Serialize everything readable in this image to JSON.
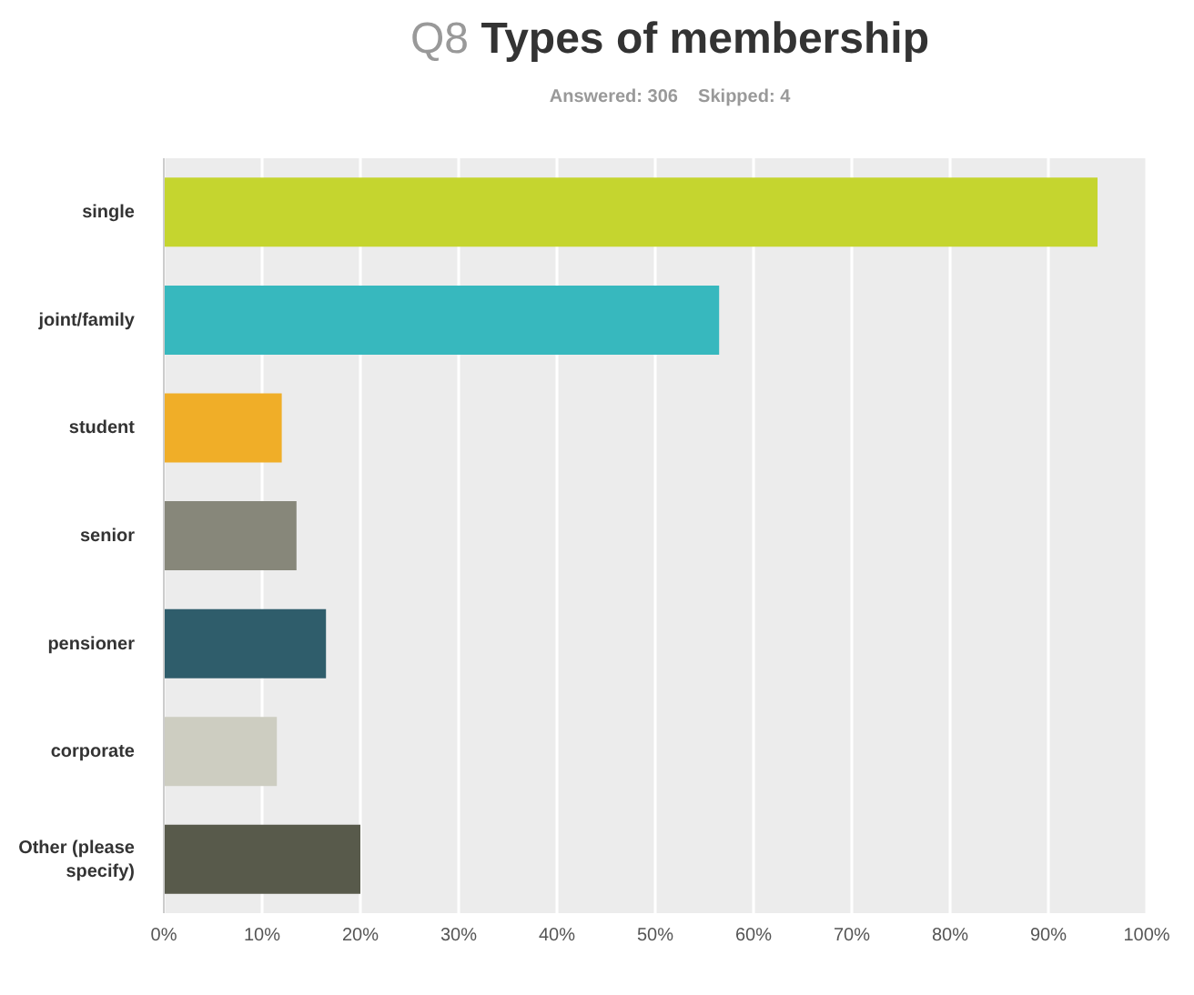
{
  "chart_data": {
    "type": "bar",
    "orientation": "horizontal",
    "title": "Q8 Types of membership",
    "subtitle": "Answered: 306    Skipped: 4",
    "categories": [
      "single",
      "joint/family",
      "student",
      "senior",
      "pensioner",
      "corporate",
      "Other (please specify)"
    ],
    "values": [
      95,
      56.5,
      12,
      13.5,
      16.5,
      11.5,
      20
    ],
    "colors": [
      "#c5d52f",
      "#37b8be",
      "#f0ae28",
      "#87877a",
      "#2f5d6b",
      "#cdcdc1",
      "#585a4b"
    ],
    "xlim": [
      0,
      100
    ],
    "xticks": [
      {
        "value": 0,
        "label": "0%"
      },
      {
        "value": 10,
        "label": "10%"
      },
      {
        "value": 20,
        "label": "20%"
      },
      {
        "value": 30,
        "label": "30%"
      },
      {
        "value": 40,
        "label": "40%"
      },
      {
        "value": 50,
        "label": "50%"
      },
      {
        "value": 60,
        "label": "60%"
      },
      {
        "value": 70,
        "label": "70%"
      },
      {
        "value": 80,
        "label": "80%"
      },
      {
        "value": 90,
        "label": "90%"
      },
      {
        "value": 100,
        "label": "100%"
      }
    ],
    "grid": "x"
  }
}
